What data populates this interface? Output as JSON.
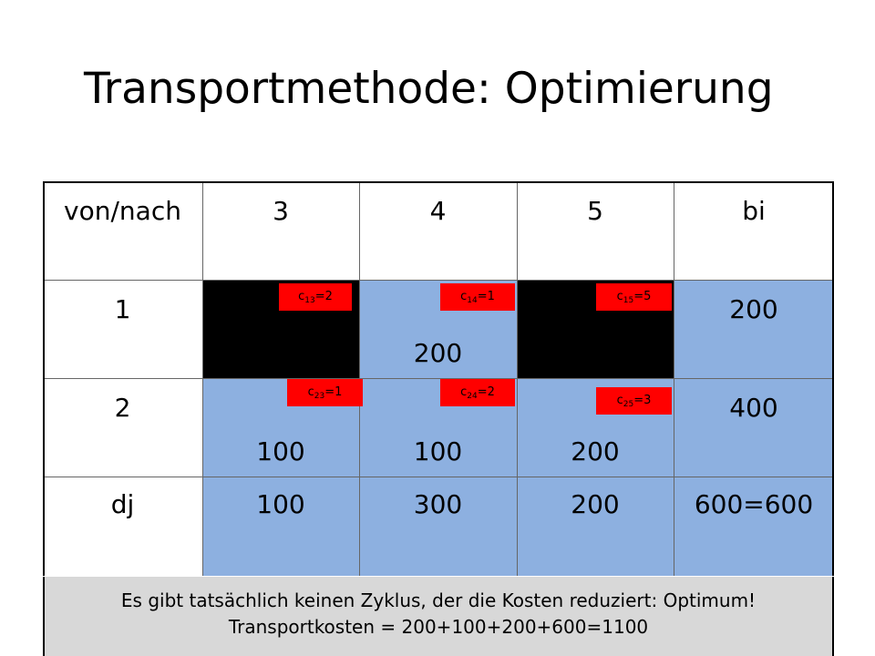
{
  "title": "Transportmethode: Optimierung",
  "header": {
    "corner": "von/nach",
    "col3": "3",
    "col4": "4",
    "col5": "5",
    "supply": "bi"
  },
  "row1": {
    "label": "1",
    "c14": "200",
    "b": "200"
  },
  "row2": {
    "label": "2",
    "c13": "100",
    "c14": "100",
    "c15": "200",
    "b": "400"
  },
  "demand": {
    "label": "dj",
    "d3": "100",
    "d4": "300",
    "d5": "200",
    "total": "600=600"
  },
  "costs": {
    "c13": {
      "prefix": "c",
      "sub": "13",
      "value": "=2"
    },
    "c14": {
      "prefix": "c",
      "sub": "14",
      "value": "=1"
    },
    "c15": {
      "prefix": "c",
      "sub": "15",
      "value": "=5"
    },
    "c23": {
      "prefix": "c",
      "sub": "23",
      "value": "=1"
    },
    "c24": {
      "prefix": "c",
      "sub": "24",
      "value": "=2"
    },
    "c25": {
      "prefix": "c",
      "sub": "25",
      "value": "=3"
    }
  },
  "note": {
    "line1": "Es gibt tatsächlich keinen Zyklus, der die Kosten reduziert: Optimum!",
    "line2": "Transportkosten = 200+100+200+600=1100"
  },
  "colors": {
    "cell_blue": "#8db0e0",
    "cost_red": "#ff0000",
    "note_gray": "#d8d8d8"
  }
}
